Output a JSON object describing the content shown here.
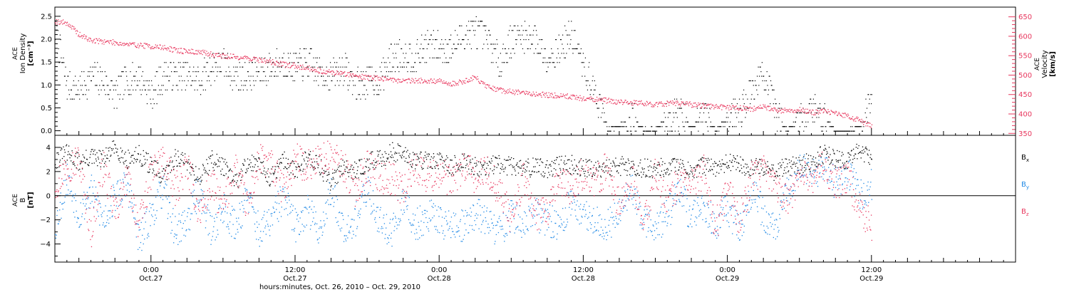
{
  "figure": {
    "xlabel": "hours:minutes, Oct. 26, 2010 – Oct. 29, 2010",
    "x_ticks": [
      {
        "h": 16,
        "time": "0:00",
        "date": "Oct.27"
      },
      {
        "h": 28,
        "time": "12:00",
        "date": "Oct.27"
      },
      {
        "h": 40,
        "time": "0:00",
        "date": "Oct.28"
      },
      {
        "h": 52,
        "time": "12:00",
        "date": "Oct.28"
      },
      {
        "h": 64,
        "time": "0:00",
        "date": "Oct.29"
      },
      {
        "h": 76,
        "time": "12:00",
        "date": "Oct.29"
      }
    ]
  },
  "chart_data": [
    {
      "type": "scatter",
      "panel": "top",
      "ylabel_left": [
        "ACE",
        "Ion Density",
        "[cm⁻³]"
      ],
      "ylabel_right": [
        "ACE",
        "Velocity",
        "[km/s]"
      ],
      "xlim_hours": [
        8,
        88
      ],
      "ylim_left": [
        -0.1,
        2.7
      ],
      "ylim_right": [
        345,
        675
      ],
      "yticks_left": [
        "0.0",
        "0.5",
        "1.0",
        "1.5",
        "2.0",
        "2.5"
      ],
      "yticks_right": [
        "350",
        "400",
        "450",
        "500",
        "550",
        "600",
        "650"
      ],
      "series": [
        {
          "axis": "left",
          "color": "#000000",
          "x_hours": [
            8.0,
            9.0,
            10.0,
            11.0,
            12.0,
            13.0,
            14.0,
            15.0,
            16.0,
            17.0,
            18.0,
            19.0,
            20.0,
            21.0,
            22.0,
            23.0,
            24.0,
            25.0,
            26.0,
            27.0,
            28.0,
            29.0,
            30.0,
            31.0,
            32.0,
            33.0,
            34.0,
            35.0,
            36.0,
            37.0,
            38.0,
            39.0,
            40.0,
            41.0,
            42.0,
            43.0,
            44.0,
            45.0,
            46.0,
            47.0,
            48.0,
            49.0,
            50.0,
            51.0,
            52.0,
            53.0,
            54.0,
            55.0,
            56.0,
            57.0,
            58.0,
            59.0,
            60.0,
            61.0,
            62.0,
            63.0,
            64.0,
            65.0,
            66.0,
            67.0,
            68.0,
            69.0,
            70.0,
            71.0,
            72.0,
            73.0,
            74.0,
            75.0,
            76.0
          ],
          "values": [
            2.2,
            1.0,
            0.9,
            1.2,
            1.1,
            0.8,
            1.1,
            1.2,
            0.8,
            1.2,
            1.2,
            1.2,
            1.1,
            1.4,
            1.5,
            1.2,
            1.2,
            1.3,
            1.4,
            1.5,
            1.4,
            1.5,
            1.3,
            1.2,
            1.4,
            1.0,
            1.1,
            1.1,
            1.6,
            1.7,
            1.6,
            1.9,
            1.8,
            1.8,
            2.1,
            2.2,
            2.0,
            1.5,
            2.0,
            2.1,
            2.0,
            1.6,
            1.8,
            2.1,
            1.4,
            0.8,
            0.05,
            0.1,
            0.3,
            0.05,
            0.0,
            0.3,
            0.4,
            0.05,
            0.4,
            0.0,
            0.3,
            0.4,
            0.9,
            1.3,
            0.4,
            0.0,
            0.3,
            0.5,
            0.3,
            0.0,
            0.0,
            0.1,
            0.7
          ]
        },
        {
          "axis": "right",
          "color": "#e8365d",
          "x_hours": [
            8.0,
            9.0,
            10.0,
            11.0,
            12.0,
            13.0,
            14.0,
            15.0,
            16.0,
            17.0,
            18.0,
            19.0,
            20.0,
            21.0,
            22.0,
            23.0,
            24.0,
            25.0,
            26.0,
            27.0,
            28.0,
            29.0,
            30.0,
            31.0,
            32.0,
            33.0,
            34.0,
            35.0,
            36.0,
            37.0,
            38.0,
            39.0,
            40.0,
            41.0,
            42.0,
            43.0,
            44.0,
            45.0,
            46.0,
            47.0,
            48.0,
            49.0,
            50.0,
            51.0,
            52.0,
            53.0,
            54.0,
            55.0,
            56.0,
            57.0,
            58.0,
            59.0,
            60.0,
            61.0,
            62.0,
            63.0,
            64.0,
            65.0,
            66.0,
            67.0,
            68.0,
            69.0,
            70.0,
            71.0,
            72.0,
            73.0,
            74.0,
            75.0,
            76.0
          ],
          "values": [
            640,
            635,
            605,
            590,
            588,
            585,
            580,
            578,
            575,
            572,
            565,
            562,
            560,
            555,
            550,
            548,
            545,
            540,
            535,
            528,
            525,
            520,
            512,
            508,
            505,
            500,
            495,
            493,
            490,
            486,
            488,
            485,
            485,
            478,
            485,
            495,
            470,
            462,
            458,
            455,
            452,
            450,
            448,
            446,
            440,
            438,
            435,
            432,
            430,
            428,
            425,
            428,
            428,
            425,
            422,
            420,
            418,
            416,
            414,
            420,
            410,
            410,
            412,
            405,
            408,
            402,
            395,
            385,
            368
          ]
        }
      ]
    },
    {
      "type": "scatter",
      "panel": "bottom",
      "ylabel_left": [
        "ACE",
        "B",
        "[nT]"
      ],
      "xlim_hours": [
        8,
        88
      ],
      "ylim": [
        -5.5,
        5.0
      ],
      "yticks": [
        "−4",
        "−2",
        "0",
        "2",
        "4"
      ],
      "zero_line": true,
      "series": [
        {
          "name": "B",
          "sub": "x",
          "color": "#000000",
          "x_hours": [
            8.0,
            9.0,
            10.0,
            11.0,
            12.0,
            13.0,
            14.0,
            15.0,
            16.0,
            17.0,
            18.0,
            19.0,
            20.0,
            21.0,
            22.0,
            23.0,
            24.0,
            25.0,
            26.0,
            27.0,
            28.0,
            29.0,
            30.0,
            31.0,
            32.0,
            33.0,
            34.0,
            35.0,
            36.0,
            37.0,
            38.0,
            39.0,
            40.0,
            41.0,
            42.0,
            43.0,
            44.0,
            45.0,
            46.0,
            47.0,
            48.0,
            49.0,
            50.0,
            51.0,
            52.0,
            53.0,
            54.0,
            55.0,
            56.0,
            57.0,
            58.0,
            59.0,
            60.0,
            61.0,
            62.0,
            63.0,
            64.0,
            65.0,
            66.0,
            67.0,
            68.0,
            69.0,
            70.0,
            71.0,
            72.0,
            73.0,
            74.0,
            75.0,
            76.0
          ],
          "values": [
            3.0,
            3.5,
            2.8,
            3.2,
            3.0,
            4.0,
            3.0,
            3.4,
            2.5,
            1.5,
            3.2,
            2.8,
            1.5,
            3.0,
            2.5,
            1.0,
            2.8,
            2.5,
            1.5,
            3.0,
            2.0,
            3.3,
            2.5,
            1.0,
            2.7,
            2.0,
            2.8,
            3.0,
            3.7,
            3.5,
            3.0,
            3.0,
            2.8,
            2.5,
            2.8,
            2.4,
            2.5,
            2.6,
            2.5,
            2.3,
            2.4,
            2.3,
            2.5,
            2.6,
            2.4,
            2.3,
            2.4,
            2.5,
            2.5,
            2.3,
            2.2,
            2.5,
            2.3,
            2.0,
            2.5,
            2.2,
            2.8,
            2.6,
            2.3,
            2.4,
            2.0,
            2.5,
            2.6,
            2.8,
            3.5,
            3.0,
            3.0,
            4.0,
            3.0
          ]
        },
        {
          "name": "B",
          "sub": "y",
          "color": "#1e88e5",
          "x_hours": [
            8.0,
            9.0,
            10.0,
            11.0,
            12.0,
            13.0,
            14.0,
            15.0,
            16.0,
            17.0,
            18.0,
            19.0,
            20.0,
            21.0,
            22.0,
            23.0,
            24.0,
            25.0,
            26.0,
            27.0,
            28.0,
            29.0,
            30.0,
            31.0,
            32.0,
            33.0,
            34.0,
            35.0,
            36.0,
            37.0,
            38.0,
            39.0,
            40.0,
            41.0,
            42.0,
            43.0,
            44.0,
            45.0,
            46.0,
            47.0,
            48.0,
            49.0,
            50.0,
            51.0,
            52.0,
            53.0,
            54.0,
            55.0,
            56.0,
            57.0,
            58.0,
            59.0,
            60.0,
            61.0,
            62.0,
            63.0,
            64.0,
            65.0,
            66.0,
            67.0,
            68.0,
            69.0,
            70.0,
            71.0,
            72.0,
            73.0,
            74.0,
            75.0,
            76.0
          ],
          "values": [
            -2.5,
            1.5,
            -1.5,
            0.5,
            -2.0,
            0.0,
            1.0,
            -3.8,
            -1.5,
            0.5,
            -3.0,
            -2.0,
            0.5,
            -3.0,
            -1.0,
            -2.5,
            0.0,
            -3.0,
            -2.0,
            0.0,
            -2.5,
            -1.0,
            -3.0,
            0.5,
            -2.5,
            -2.0,
            0.5,
            -2.0,
            -3.0,
            -0.5,
            -2.5,
            -1.5,
            -2.0,
            -2.5,
            -2.5,
            -1.5,
            -2.0,
            -3.0,
            -1.5,
            -2.5,
            -1.5,
            -2.0,
            -2.5,
            -0.5,
            -1.5,
            -2.0,
            -2.5,
            -1.0,
            0.5,
            -2.0,
            -2.5,
            -1.5,
            0.5,
            -2.0,
            -0.5,
            -2.5,
            -1.0,
            -3.0,
            0.5,
            -1.5,
            -3.2,
            0.5,
            2.5,
            1.5,
            2.5,
            1.0,
            2.0,
            0.0,
            1.0
          ]
        },
        {
          "name": "B",
          "sub": "z",
          "color": "#e8365d",
          "x_hours": [
            8.0,
            9.0,
            10.0,
            11.0,
            12.0,
            13.0,
            14.0,
            15.0,
            16.0,
            17.0,
            18.0,
            19.0,
            20.0,
            21.0,
            22.0,
            23.0,
            24.0,
            25.0,
            26.0,
            27.0,
            28.0,
            29.0,
            30.0,
            31.0,
            32.0,
            33.0,
            34.0,
            35.0,
            36.0,
            37.0,
            38.0,
            39.0,
            40.0,
            41.0,
            42.0,
            43.0,
            44.0,
            45.0,
            46.0,
            47.0,
            48.0,
            49.0,
            50.0,
            51.0,
            52.0,
            53.0,
            54.0,
            55.0,
            56.0,
            57.0,
            58.0,
            59.0,
            60.0,
            61.0,
            62.0,
            63.0,
            64.0,
            65.0,
            66.0,
            67.0,
            68.0,
            69.0,
            70.0,
            71.0,
            72.0,
            73.0,
            74.0,
            75.0,
            76.0
          ],
          "values": [
            1.0,
            2.5,
            3.0,
            -3.0,
            2.5,
            -1.5,
            1.5,
            -2.5,
            2.0,
            3.0,
            0.5,
            2.5,
            -1.5,
            1.0,
            -1.0,
            2.5,
            -1.0,
            3.0,
            2.5,
            0.5,
            3.0,
            2.5,
            3.0,
            3.3,
            2.5,
            0.5,
            2.5,
            1.5,
            1.5,
            0.5,
            2.5,
            1.5,
            2.0,
            1.0,
            2.5,
            1.5,
            2.0,
            0.5,
            -2.0,
            1.5,
            -1.5,
            -1.5,
            1.5,
            0.5,
            2.0,
            1.0,
            2.5,
            -1.0,
            1.5,
            -2.5,
            2.0,
            -0.5,
            1.5,
            1.0,
            2.0,
            -2.5,
            0.5,
            -2.0,
            1.5,
            2.0,
            1.0,
            -0.5,
            2.0,
            1.5,
            2.5,
            1.0,
            1.5,
            -1.0,
            -2.5
          ]
        }
      ]
    }
  ]
}
